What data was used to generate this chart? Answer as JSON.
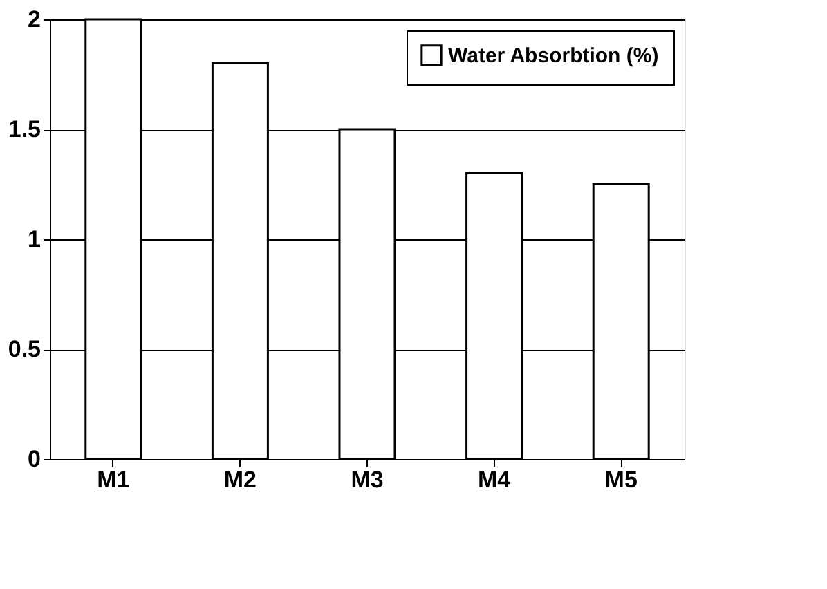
{
  "chart_data": {
    "type": "bar",
    "categories": [
      "M1",
      "M2",
      "M3",
      "M4",
      "M5"
    ],
    "series": [
      {
        "name": "Water Absorbtion (%)",
        "color": "#ffffff",
        "values": [
          2.0,
          1.8,
          1.5,
          1.3,
          1.25
        ]
      }
    ],
    "ylim": [
      0,
      2
    ],
    "yticks": [
      0,
      0.5,
      1,
      1.5,
      2
    ],
    "grid": "y",
    "legend": "top right"
  }
}
